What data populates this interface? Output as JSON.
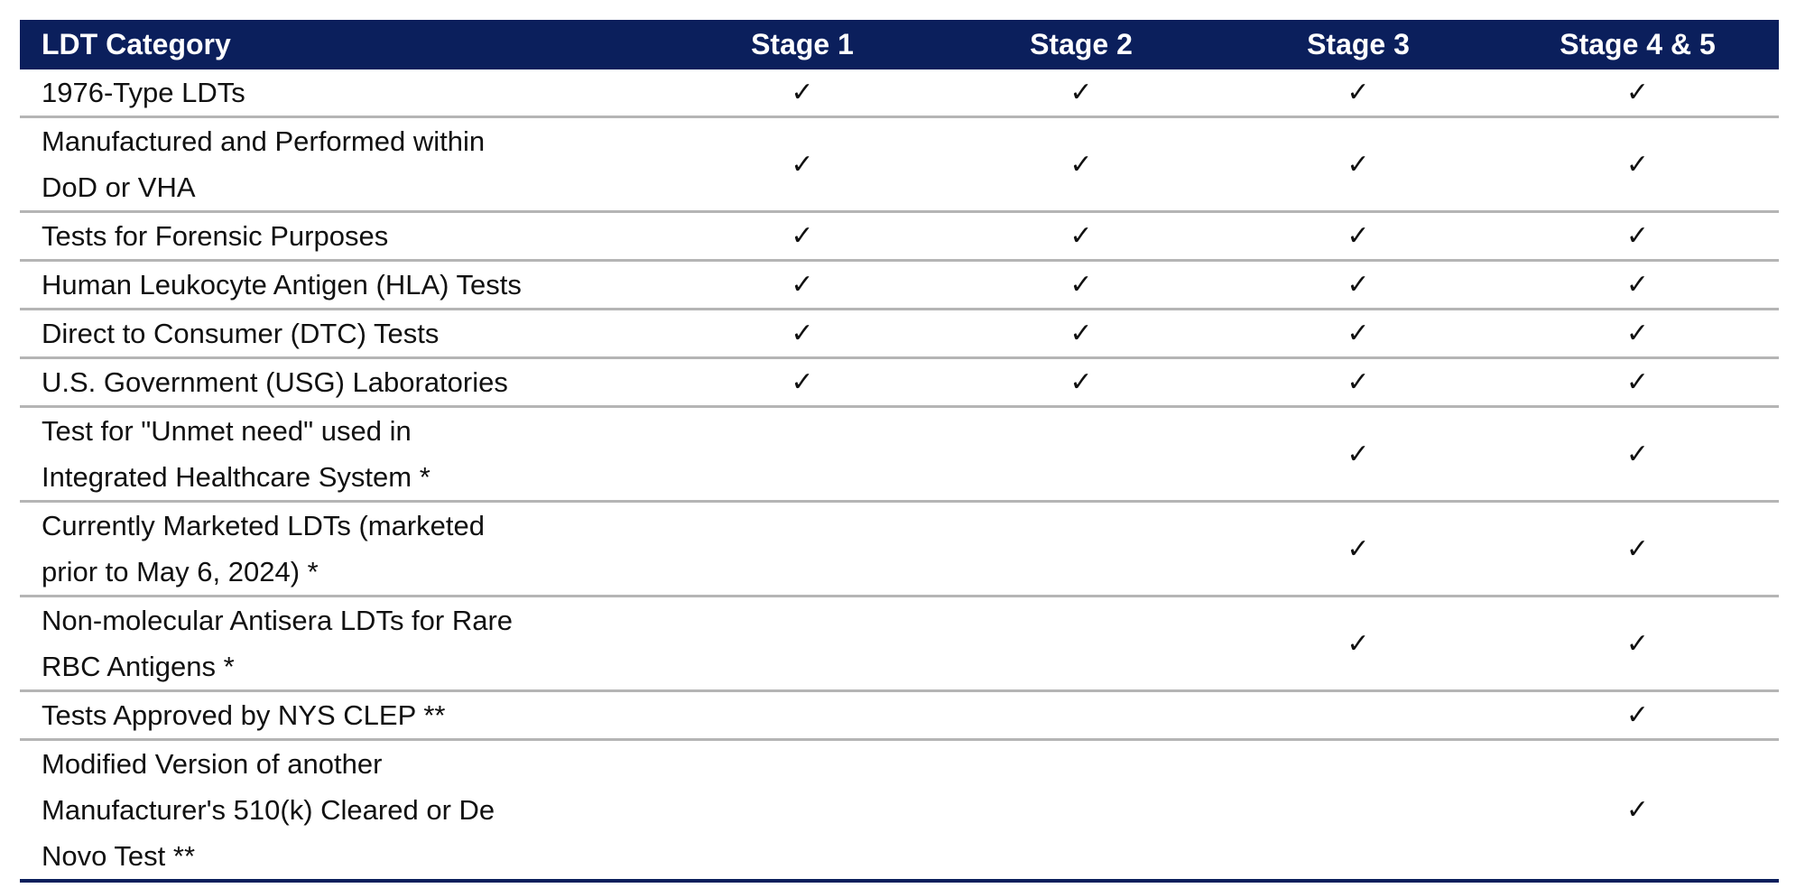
{
  "header": {
    "category": "LDT Category",
    "stages": [
      "Stage 1",
      "Stage 2",
      "Stage 3",
      "Stage 4 & 5"
    ]
  },
  "check_glyph": "✓",
  "colors": {
    "header_bg": "#0b1f5c",
    "row_divider": "#b5b5b5"
  },
  "rows": [
    {
      "label": "1976-Type LDTs",
      "checks": [
        true,
        true,
        true,
        true
      ]
    },
    {
      "label": "Manufactured and Performed within DoD or VHA",
      "checks": [
        true,
        true,
        true,
        true
      ]
    },
    {
      "label": "Tests for Forensic Purposes",
      "checks": [
        true,
        true,
        true,
        true
      ]
    },
    {
      "label": "Human Leukocyte Antigen (HLA) Tests",
      "checks": [
        true,
        true,
        true,
        true
      ]
    },
    {
      "label": "Direct to Consumer (DTC) Tests",
      "checks": [
        true,
        true,
        true,
        true
      ]
    },
    {
      "label": "U.S. Government (USG) Laboratories",
      "checks": [
        true,
        true,
        true,
        true
      ]
    },
    {
      "label": "Test for \"Unmet need\" used in Integrated Healthcare System *",
      "checks": [
        false,
        false,
        true,
        true
      ]
    },
    {
      "label": "Currently Marketed LDTs (marketed prior to May 6, 2024) *",
      "checks": [
        false,
        false,
        true,
        true
      ]
    },
    {
      "label": "Non-molecular Antisera LDTs for Rare RBC Antigens *",
      "checks": [
        false,
        false,
        true,
        true
      ]
    },
    {
      "label": "Tests Approved by NYS CLEP **",
      "checks": [
        false,
        false,
        false,
        true
      ]
    },
    {
      "label": "Modified Version of another Manufacturer's 510(k) Cleared or De Novo Test **",
      "checks": [
        false,
        false,
        false,
        true
      ]
    }
  ]
}
